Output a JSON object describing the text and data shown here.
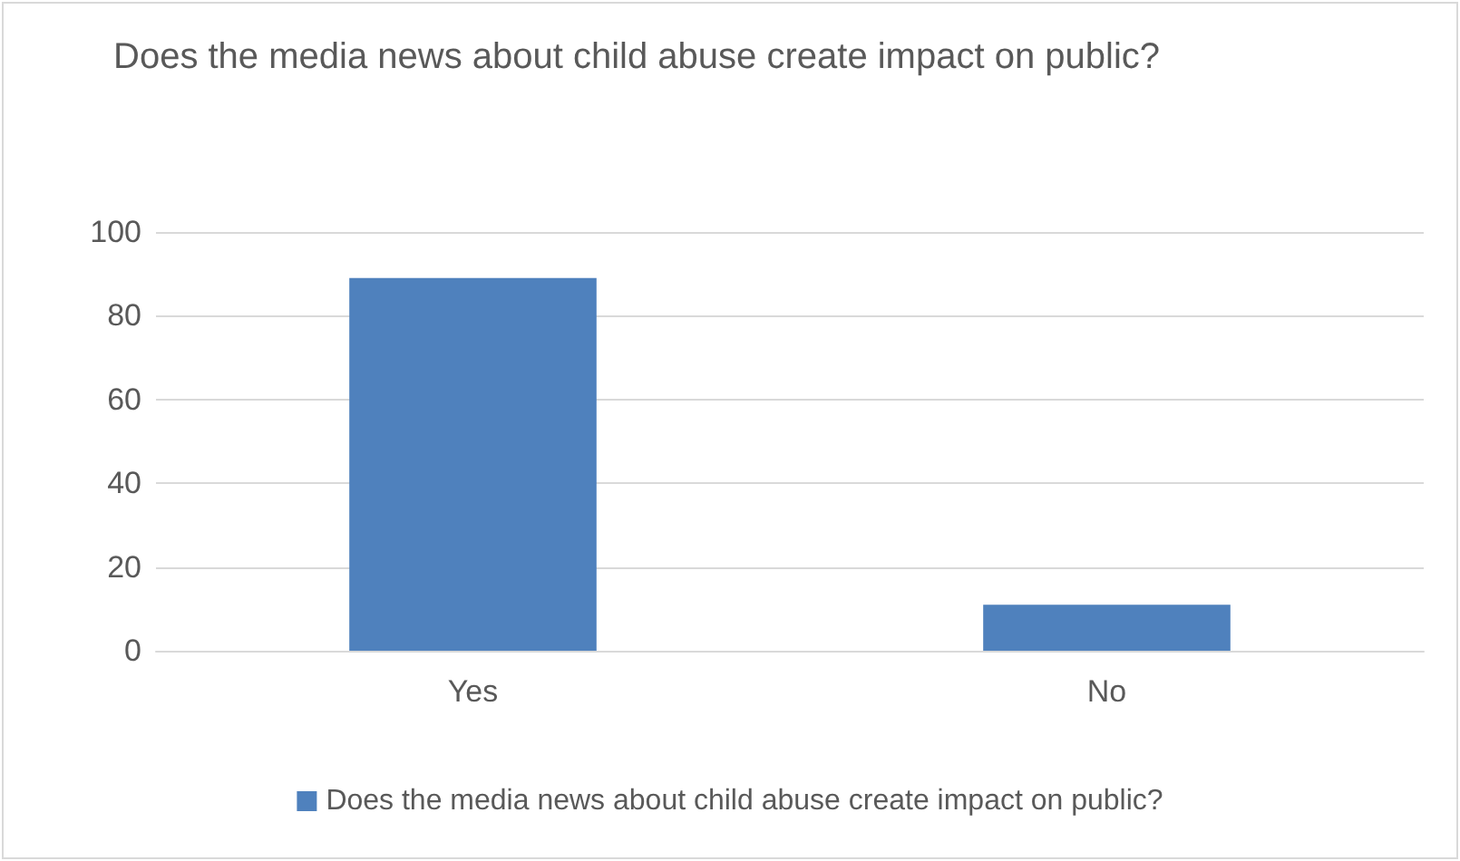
{
  "chart_data": {
    "type": "bar",
    "title": "Does the media news about child abuse create impact on public?",
    "categories": [
      "Yes",
      "No"
    ],
    "series": [
      {
        "name": "Does the media news about child abuse create impact on public?",
        "color": "#4f81bd",
        "values": [
          89,
          11
        ]
      }
    ],
    "ylim": [
      0,
      100
    ],
    "yticks": [
      0,
      20,
      40,
      60,
      80,
      100
    ],
    "grid": "y",
    "legend": "bottom"
  }
}
